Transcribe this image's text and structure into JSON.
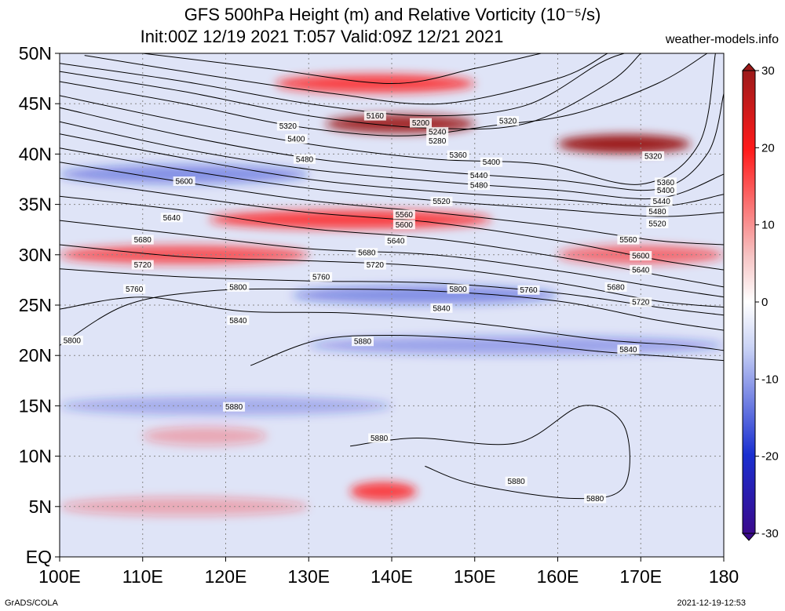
{
  "header": {
    "title_line1": "GFS 500hPa Height (m) and Relative Vorticity (10⁻⁵/s)",
    "title_line2": "Init:00Z 12/19 2021 T:057 Valid:09Z 12/21 2021",
    "site": "weather-models.info"
  },
  "footer": {
    "software": "GrADS/COLA",
    "timestamp": "2021-12-19-12:53"
  },
  "chart_data": {
    "type": "heatmap",
    "title": "GFS 500hPa Height (m) and Relative Vorticity (10⁻⁵/s)",
    "xlabel": "",
    "ylabel": "",
    "xlim": [
      100,
      180
    ],
    "ylim": [
      0,
      50
    ],
    "x_ticks": [
      "100E",
      "110E",
      "120E",
      "130E",
      "140E",
      "150E",
      "160E",
      "170E",
      "180"
    ],
    "y_ticks": [
      "EQ",
      "5N",
      "10N",
      "15N",
      "20N",
      "25N",
      "30N",
      "35N",
      "40N",
      "45N",
      "50N"
    ],
    "grid": true,
    "colorbar": {
      "min": -30,
      "max": 30,
      "ticks": [
        "-30",
        "-20",
        "-10",
        "0",
        "10",
        "20",
        "30"
      ],
      "colors": {
        "neg_max": "#3a0a8c",
        "neg_mid": "#1a2fd0",
        "neg_low": "#c9d2f5",
        "zero": "#ffffff",
        "pos_low": "#f6c3c3",
        "pos_mid": "#ff1a1a",
        "pos_max": "#9c1a1a"
      }
    },
    "vorticity_bands": [
      {
        "sign": "pos",
        "lat": 47,
        "lon_start": 126,
        "lon_end": 150,
        "strength": 0.8
      },
      {
        "sign": "pos",
        "lat": 43,
        "lon_start": 132,
        "lon_end": 150,
        "strength": 0.9
      },
      {
        "sign": "pos",
        "lat": 41,
        "lon_start": 160,
        "lon_end": 176,
        "strength": 1.0
      },
      {
        "sign": "pos",
        "lat": 33.5,
        "lon_start": 118,
        "lon_end": 152,
        "strength": 0.8
      },
      {
        "sign": "pos",
        "lat": 30,
        "lon_start": 100,
        "lon_end": 130,
        "strength": 0.7
      },
      {
        "sign": "pos",
        "lat": 30,
        "lon_start": 160,
        "lon_end": 180,
        "strength": 0.6
      },
      {
        "sign": "neg",
        "lat": 38,
        "lon_start": 100,
        "lon_end": 130,
        "strength": 0.45
      },
      {
        "sign": "neg",
        "lat": 26,
        "lon_start": 128,
        "lon_end": 160,
        "strength": 0.45
      },
      {
        "sign": "neg",
        "lat": 21,
        "lon_start": 130,
        "lon_end": 180,
        "strength": 0.35
      },
      {
        "sign": "neg",
        "lat": 15,
        "lon_start": 100,
        "lon_end": 140,
        "strength": 0.3
      },
      {
        "sign": "pos",
        "lat": 6.5,
        "lon_start": 135,
        "lon_end": 143,
        "strength": 0.8
      },
      {
        "sign": "pos",
        "lat": 12,
        "lon_start": 110,
        "lon_end": 125,
        "strength": 0.3
      },
      {
        "sign": "pos",
        "lat": 5,
        "lon_start": 100,
        "lon_end": 130,
        "strength": 0.3
      }
    ],
    "contours": [
      {
        "label": "5160",
        "points": [
          [
            110,
            50
          ],
          [
            125,
            48.5
          ],
          [
            140,
            47
          ],
          [
            150,
            48.5
          ],
          [
            158,
            50
          ]
        ]
      },
      {
        "label": "5200",
        "points": [
          [
            103,
            49.8
          ],
          [
            118,
            47.8
          ],
          [
            133,
            46
          ],
          [
            146,
            45
          ],
          [
            160,
            47.5
          ],
          [
            166,
            50
          ]
        ]
      },
      {
        "label": "5240",
        "points": [
          [
            100,
            49
          ],
          [
            115,
            47.2
          ],
          [
            130,
            45
          ],
          [
            144,
            43.8
          ],
          [
            156,
            44.8
          ],
          [
            165,
            49
          ],
          [
            168,
            50
          ]
        ]
      },
      {
        "label": "5280",
        "points": [
          [
            100,
            48.2
          ],
          [
            115,
            46.2
          ],
          [
            130,
            43.8
          ],
          [
            144,
            42.6
          ],
          [
            156,
            43
          ],
          [
            166,
            47
          ],
          [
            170,
            50
          ]
        ]
      },
      {
        "label": "5320",
        "points": [
          [
            100,
            47.2
          ],
          [
            115,
            45
          ],
          [
            128,
            42.8
          ],
          [
            141,
            41.8
          ],
          [
            152,
            42.8
          ],
          [
            162,
            44
          ],
          [
            172,
            47
          ],
          [
            178,
            50
          ]
        ]
      },
      {
        "label": "5360",
        "points": [
          [
            100,
            45.8
          ],
          [
            115,
            43.2
          ],
          [
            130,
            41
          ],
          [
            145,
            39.5
          ],
          [
            158,
            39
          ],
          [
            170,
            37
          ],
          [
            177,
            41
          ],
          [
            179,
            50
          ]
        ]
      },
      {
        "label": "5400",
        "points": [
          [
            100,
            44.6
          ],
          [
            115,
            41.8
          ],
          [
            130,
            39.6
          ],
          [
            145,
            38.3
          ],
          [
            160,
            37.4
          ],
          [
            172,
            36.5
          ],
          [
            178,
            40
          ],
          [
            180,
            46
          ]
        ]
      },
      {
        "label": "5440",
        "points": [
          [
            100,
            43.2
          ],
          [
            115,
            40.5
          ],
          [
            130,
            38.5
          ],
          [
            145,
            37.3
          ],
          [
            160,
            36.4
          ],
          [
            172,
            35.6
          ],
          [
            180,
            38
          ]
        ]
      },
      {
        "label": "5480",
        "points": [
          [
            100,
            42
          ],
          [
            115,
            39.6
          ],
          [
            130,
            37.5
          ],
          [
            145,
            36.3
          ],
          [
            160,
            35.5
          ],
          [
            172,
            34.8
          ],
          [
            180,
            36
          ]
        ]
      },
      {
        "label": "5520",
        "points": [
          [
            100,
            40.6
          ],
          [
            115,
            38.4
          ],
          [
            130,
            36.6
          ],
          [
            145,
            35.4
          ],
          [
            160,
            34.5
          ],
          [
            172,
            33.8
          ],
          [
            180,
            34.2
          ]
        ]
      },
      {
        "label": "5560",
        "points": [
          [
            100,
            39.2
          ],
          [
            115,
            37.2
          ],
          [
            130,
            35.4
          ],
          [
            145,
            34.2
          ],
          [
            160,
            32.8
          ],
          [
            172,
            31.4
          ],
          [
            180,
            31
          ]
        ]
      },
      {
        "label": "5600",
        "points": [
          [
            100,
            37.6
          ],
          [
            115,
            35.8
          ],
          [
            130,
            34.2
          ],
          [
            145,
            33.2
          ],
          [
            160,
            31.4
          ],
          [
            172,
            29.5
          ],
          [
            180,
            28.5
          ]
        ]
      },
      {
        "label": "5640",
        "points": [
          [
            100,
            35.8
          ],
          [
            115,
            34.4
          ],
          [
            130,
            32.6
          ],
          [
            145,
            31.6
          ],
          [
            160,
            29.8
          ],
          [
            172,
            28
          ],
          [
            180,
            26.8
          ]
        ]
      },
      {
        "label": "5680",
        "points": [
          [
            100,
            33.4
          ],
          [
            115,
            32
          ],
          [
            130,
            30.6
          ],
          [
            145,
            30
          ],
          [
            160,
            28.4
          ],
          [
            172,
            26.8
          ],
          [
            180,
            25.8
          ]
        ]
      },
      {
        "label": "5720",
        "points": [
          [
            100,
            31
          ],
          [
            115,
            29.8
          ],
          [
            130,
            29.4
          ],
          [
            145,
            28.8
          ],
          [
            160,
            27.2
          ],
          [
            172,
            25.4
          ],
          [
            180,
            24.8
          ]
        ]
      },
      {
        "label": "5760",
        "points": [
          [
            100,
            28.6
          ],
          [
            115,
            27.8
          ],
          [
            130,
            27.4
          ],
          [
            145,
            27.2
          ],
          [
            160,
            26.2
          ],
          [
            172,
            24.8
          ],
          [
            180,
            24
          ]
        ]
      },
      {
        "label": "5800",
        "points": [
          [
            100,
            21
          ],
          [
            108,
            25
          ],
          [
            118,
            26.4
          ],
          [
            130,
            26.6
          ],
          [
            145,
            26.4
          ],
          [
            160,
            25.4
          ],
          [
            172,
            23.5
          ],
          [
            180,
            22.5
          ]
        ]
      },
      {
        "label": "5840",
        "points": [
          [
            100,
            24.6
          ],
          [
            110,
            25.8
          ],
          [
            122,
            24.4
          ],
          [
            135,
            24.2
          ],
          [
            150,
            23.2
          ],
          [
            165,
            21.6
          ],
          [
            175,
            21
          ],
          [
            180,
            20.5
          ]
        ]
      },
      {
        "label": "5880",
        "points": [
          [
            123,
            19
          ],
          [
            131,
            21.5
          ],
          [
            140,
            22
          ],
          [
            152,
            21.5
          ],
          [
            165,
            20.4
          ],
          [
            175,
            19.8
          ],
          [
            180,
            19.5
          ]
        ]
      },
      {
        "label": "5880",
        "points": [
          [
            135,
            11
          ],
          [
            143,
            11.8
          ],
          [
            155,
            11.3
          ],
          [
            163,
            15
          ],
          [
            168,
            13
          ],
          [
            168,
            7
          ],
          [
            162,
            5.8
          ],
          [
            150,
            7.2
          ],
          [
            144,
            9
          ]
        ]
      }
    ],
    "contour_labels": [
      {
        "text": "5160",
        "lon": 138,
        "lat": 43.8
      },
      {
        "text": "5200",
        "lon": 143.5,
        "lat": 43.1
      },
      {
        "text": "5240",
        "lon": 145.5,
        "lat": 42.2
      },
      {
        "text": "5280",
        "lon": 145.5,
        "lat": 41.3
      },
      {
        "text": "5320",
        "lon": 127.5,
        "lat": 42.8
      },
      {
        "text": "5320",
        "lon": 154,
        "lat": 43.3
      },
      {
        "text": "5320",
        "lon": 171.5,
        "lat": 39.8
      },
      {
        "text": "5360",
        "lon": 148,
        "lat": 39.9
      },
      {
        "text": "5360",
        "lon": 173,
        "lat": 37.2
      },
      {
        "text": "5400",
        "lon": 128.5,
        "lat": 41.5
      },
      {
        "text": "5400",
        "lon": 152,
        "lat": 39.2
      },
      {
        "text": "5400",
        "lon": 173,
        "lat": 36.4
      },
      {
        "text": "5440",
        "lon": 150.5,
        "lat": 37.9
      },
      {
        "text": "5440",
        "lon": 172.5,
        "lat": 35.3
      },
      {
        "text": "5480",
        "lon": 129.5,
        "lat": 39.5
      },
      {
        "text": "5480",
        "lon": 150.5,
        "lat": 36.9
      },
      {
        "text": "5480",
        "lon": 172,
        "lat": 34.3
      },
      {
        "text": "5520",
        "lon": 146,
        "lat": 35.3
      },
      {
        "text": "5520",
        "lon": 172,
        "lat": 33.1
      },
      {
        "text": "5560",
        "lon": 141.5,
        "lat": 34.0
      },
      {
        "text": "5560",
        "lon": 168.5,
        "lat": 31.5
      },
      {
        "text": "5600",
        "lon": 115,
        "lat": 37.3
      },
      {
        "text": "5600",
        "lon": 141.5,
        "lat": 33.0
      },
      {
        "text": "5600",
        "lon": 170,
        "lat": 29.9
      },
      {
        "text": "5640",
        "lon": 113.5,
        "lat": 33.7
      },
      {
        "text": "5640",
        "lon": 140.5,
        "lat": 31.4
      },
      {
        "text": "5640",
        "lon": 170,
        "lat": 28.5
      },
      {
        "text": "5680",
        "lon": 110,
        "lat": 31.5
      },
      {
        "text": "5680",
        "lon": 137,
        "lat": 30.2
      },
      {
        "text": "5680",
        "lon": 167,
        "lat": 26.8
      },
      {
        "text": "5720",
        "lon": 110,
        "lat": 29.0
      },
      {
        "text": "5720",
        "lon": 138,
        "lat": 29.0
      },
      {
        "text": "5720",
        "lon": 170,
        "lat": 25.3
      },
      {
        "text": "5760",
        "lon": 109,
        "lat": 26.6
      },
      {
        "text": "5760",
        "lon": 131.5,
        "lat": 27.8
      },
      {
        "text": "5760",
        "lon": 156.5,
        "lat": 26.5
      },
      {
        "text": "5800",
        "lon": 121.5,
        "lat": 26.8
      },
      {
        "text": "5800",
        "lon": 101.5,
        "lat": 21.5
      },
      {
        "text": "5800",
        "lon": 148,
        "lat": 26.6
      },
      {
        "text": "5840",
        "lon": 121.5,
        "lat": 23.5
      },
      {
        "text": "5840",
        "lon": 146,
        "lat": 24.7
      },
      {
        "text": "5840",
        "lon": 168.5,
        "lat": 20.6
      },
      {
        "text": "5880",
        "lon": 136.5,
        "lat": 21.4
      },
      {
        "text": "5880",
        "lon": 121,
        "lat": 14.9
      },
      {
        "text": "5880",
        "lon": 138.5,
        "lat": 11.8
      },
      {
        "text": "5880",
        "lon": 155,
        "lat": 7.5
      },
      {
        "text": "5880",
        "lon": 164.5,
        "lat": 5.8
      }
    ]
  }
}
